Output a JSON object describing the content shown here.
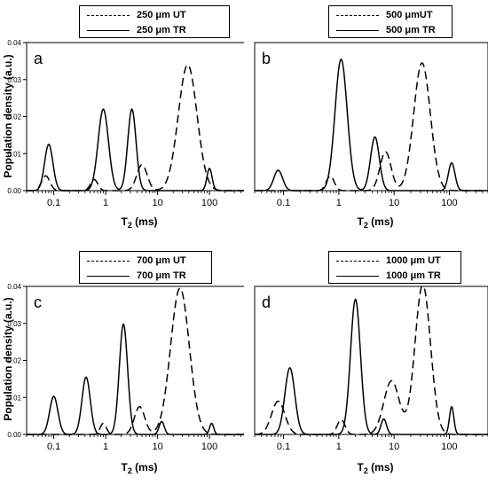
{
  "common": {
    "ylabel": "Population density (a.u.)",
    "xlabel_main": "T",
    "xlabel_sub": "2",
    "xlabel_unit": " (ms)",
    "series_styles": {
      "UT": "dashed",
      "TR": "solid"
    },
    "line_color": "#000000"
  },
  "chart_data": [
    {
      "type": "line",
      "panel_letter": "a",
      "legend": [
        "250 μm UT",
        "250 μm TR"
      ],
      "xscale": "log",
      "xlim": [
        0.03,
        500
      ],
      "ylim": [
        0,
        0.04
      ],
      "xticks": [
        "0.1",
        "1",
        "10",
        "100"
      ],
      "yticks": [
        "0.00",
        "0.01",
        "0.02",
        "0.03",
        "0.04"
      ],
      "series": [
        {
          "name": "250 μm UT",
          "peaks": [
            [
              0.07,
              0.004,
              0.08
            ],
            [
              0.6,
              0.003,
              0.07
            ],
            [
              5,
              0.007,
              0.1
            ],
            [
              38,
              0.034,
              0.18
            ]
          ]
        },
        {
          "name": "250 μm TR",
          "peaks": [
            [
              0.08,
              0.0125,
              0.08
            ],
            [
              0.9,
              0.022,
              0.1
            ],
            [
              3.2,
              0.022,
              0.08
            ],
            [
              100,
              0.006,
              0.05
            ]
          ]
        }
      ]
    },
    {
      "type": "line",
      "panel_letter": "b",
      "legend": [
        "500 μmUT",
        "500 μm TR"
      ],
      "xscale": "log",
      "xlim": [
        0.03,
        500
      ],
      "ylim": [
        0,
        0.04
      ],
      "xticks": [
        "0.1",
        "1",
        "10",
        "100"
      ],
      "yticks": [],
      "series": [
        {
          "name": "500 μmUT",
          "peaks": [
            [
              0.7,
              0.004,
              0.07
            ],
            [
              7,
              0.0105,
              0.1
            ],
            [
              32,
              0.0345,
              0.15
            ]
          ]
        },
        {
          "name": "500 μm TR",
          "peaks": [
            [
              0.08,
              0.0055,
              0.08
            ],
            [
              1.1,
              0.0355,
              0.11
            ],
            [
              4.5,
              0.0145,
              0.08
            ],
            [
              110,
              0.0075,
              0.06
            ]
          ]
        }
      ]
    },
    {
      "type": "line",
      "panel_letter": "c",
      "legend": [
        "700 μm UT",
        "700 μm TR"
      ],
      "xscale": "log",
      "xlim": [
        0.03,
        500
      ],
      "ylim": [
        0,
        0.04
      ],
      "xticks": [
        "0.1",
        "1",
        "10",
        "100"
      ],
      "yticks": [
        "0.00",
        "0.01",
        "0.02",
        "0.03",
        "0.04"
      ],
      "series": [
        {
          "name": "700 μm UT",
          "peaks": [
            [
              0.9,
              0.003,
              0.06
            ],
            [
              4.5,
              0.0075,
              0.1
            ],
            [
              27,
              0.0395,
              0.18
            ]
          ]
        },
        {
          "name": "700 μm TR",
          "peaks": [
            [
              0.1,
              0.0103,
              0.08
            ],
            [
              0.42,
              0.0155,
              0.08
            ],
            [
              2.2,
              0.0298,
              0.08
            ],
            [
              12,
              0.0035,
              0.05
            ],
            [
              110,
              0.003,
              0.04
            ]
          ]
        }
      ]
    },
    {
      "type": "line",
      "panel_letter": "d",
      "legend": [
        "1000 μm UT",
        "1000 μm TR"
      ],
      "xscale": "log",
      "xlim": [
        0.03,
        500
      ],
      "ylim": [
        0,
        0.04
      ],
      "xticks": [
        "0.1",
        "1",
        "10",
        "100"
      ],
      "yticks": [],
      "series": [
        {
          "name": "1000 μm UT",
          "peaks": [
            [
              0.08,
              0.009,
              0.12
            ],
            [
              1.1,
              0.004,
              0.07
            ],
            [
              9,
              0.0145,
              0.14
            ],
            [
              33,
              0.0405,
              0.14
            ]
          ]
        },
        {
          "name": "1000 μm TR",
          "peaks": [
            [
              0.13,
              0.018,
              0.09
            ],
            [
              2,
              0.0365,
              0.09
            ],
            [
              6.5,
              0.0042,
              0.05
            ],
            [
              110,
              0.0075,
              0.04
            ]
          ]
        }
      ]
    }
  ]
}
